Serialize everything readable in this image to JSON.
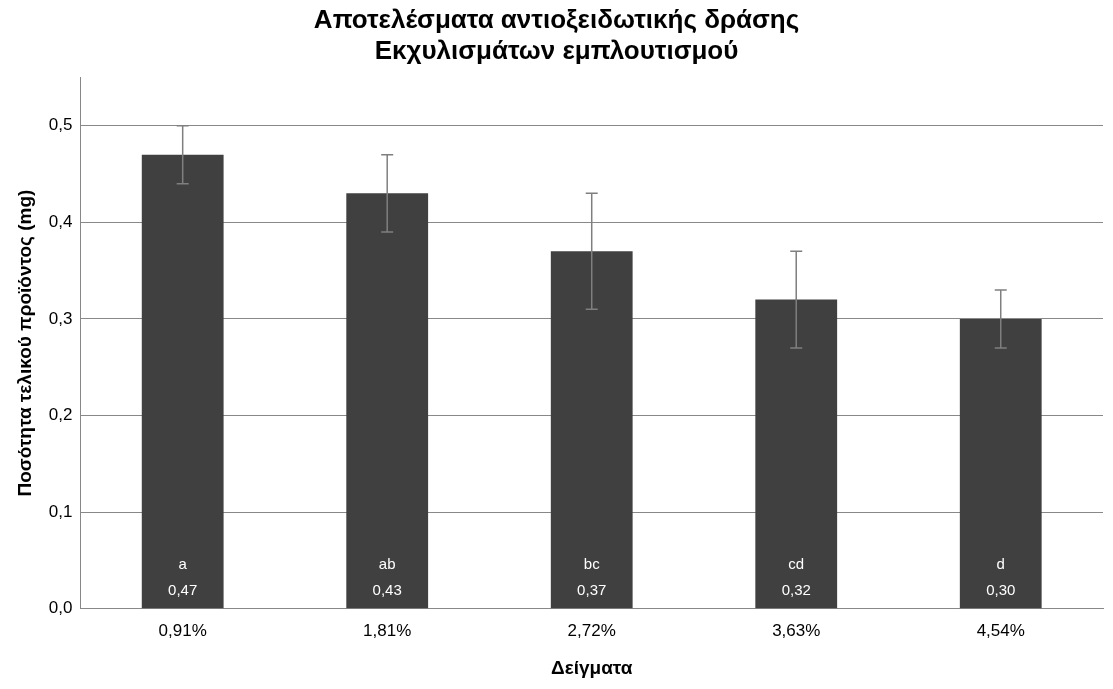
{
  "chart_data": {
    "type": "bar",
    "title": "Αποτελέσματα αντιοξειδωτικής δράσης\nΕκχυλισμάτων εμπλουτισμού",
    "xlabel": "Δείγματα",
    "ylabel": "Ποσότητα τελικού προϊόντος (mg)",
    "categories": [
      "0,91%",
      "1,81%",
      "2,72%",
      "3,63%",
      "4,54%"
    ],
    "values": [
      0.47,
      0.43,
      0.37,
      0.32,
      0.3
    ],
    "color": "#404040",
    "errors": [
      0.03,
      0.04,
      0.06,
      0.05,
      0.03
    ],
    "value_labels": [
      "a\n0,47",
      "ab\n0,43",
      "bc\n0,37",
      "cd\n0,32",
      "d\n0,30"
    ],
    "ylim": [
      0,
      0.55
    ],
    "yticks": [
      {
        "value": 0,
        "label": "0,0"
      },
      {
        "value": 0.1,
        "label": "0,1"
      },
      {
        "value": 0.2,
        "label": "0,2"
      },
      {
        "value": 0.3,
        "label": "0,3"
      },
      {
        "value": 0.4,
        "label": "0,4"
      },
      {
        "value": 0.5,
        "label": "0,5"
      }
    ],
    "grid": "y",
    "legend": false
  }
}
